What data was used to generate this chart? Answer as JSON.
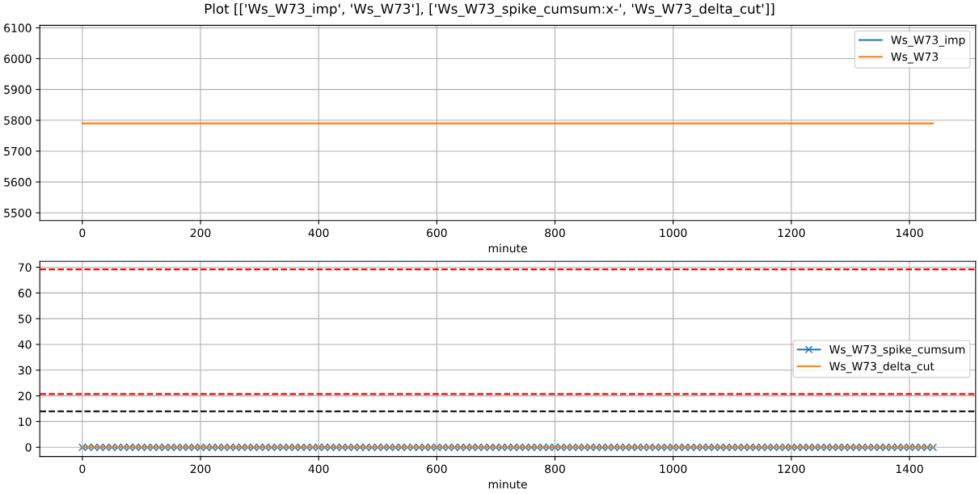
{
  "chart_data": [
    {
      "type": "line",
      "title": "Plot [['Ws_W73_imp', 'Ws_W73'], ['Ws_W73_spike_cumsum:x-', 'Ws_W73_delta_cut']]",
      "xlabel": "minute",
      "x": [
        0,
        1440
      ],
      "series": [
        {
          "name": "Ws_W73_imp",
          "color": "#1f77b4",
          "values": [
            null,
            null
          ]
        },
        {
          "name": "Ws_W73",
          "color": "#ff7f0e",
          "values": [
            5790,
            5790
          ]
        }
      ],
      "xlim": [
        -72,
        1512
      ],
      "xticks": [
        0,
        200,
        400,
        600,
        800,
        1000,
        1200,
        1400
      ],
      "ylim": [
        5475,
        6108
      ],
      "yticks": [
        5500,
        5600,
        5700,
        5800,
        5900,
        6000,
        6100
      ],
      "grid": true,
      "legend": "top right"
    },
    {
      "type": "line",
      "xlabel": "minute",
      "x": [
        0,
        10,
        20,
        30,
        40,
        50,
        60,
        70,
        80,
        90,
        100,
        110,
        120,
        130,
        140,
        150,
        160,
        170,
        180,
        190,
        200,
        210,
        220,
        230,
        240,
        250,
        260,
        270,
        280,
        290,
        300,
        310,
        320,
        330,
        340,
        350,
        360,
        370,
        380,
        390,
        400,
        410,
        420,
        430,
        440,
        450,
        460,
        470,
        480,
        490,
        500,
        510,
        520,
        530,
        540,
        550,
        560,
        570,
        580,
        590,
        600,
        610,
        620,
        630,
        640,
        650,
        660,
        670,
        680,
        690,
        700,
        710,
        720,
        730,
        740,
        750,
        760,
        770,
        780,
        790,
        800,
        810,
        820,
        830,
        840,
        850,
        860,
        870,
        880,
        890,
        900,
        910,
        920,
        930,
        940,
        950,
        960,
        970,
        980,
        990,
        1000,
        1010,
        1020,
        1030,
        1040,
        1050,
        1060,
        1070,
        1080,
        1090,
        1100,
        1110,
        1120,
        1130,
        1140,
        1150,
        1160,
        1170,
        1180,
        1190,
        1200,
        1210,
        1220,
        1230,
        1240,
        1250,
        1260,
        1270,
        1280,
        1290,
        1300,
        1310,
        1320,
        1330,
        1340,
        1350,
        1360,
        1370,
        1380,
        1390,
        1400,
        1410,
        1420,
        1430,
        1440
      ],
      "series": [
        {
          "name": "Ws_W73_spike_cumsum",
          "color": "#1f77b4",
          "marker": "cross",
          "values": [
            0,
            0,
            0,
            0,
            0,
            0,
            0,
            0,
            0,
            0,
            0,
            0,
            0,
            0,
            0,
            0,
            0,
            0,
            0,
            0,
            0,
            0,
            0,
            0,
            0,
            0,
            0,
            0,
            0,
            0,
            0,
            0,
            0,
            0,
            0,
            0,
            0,
            0,
            0,
            0,
            0,
            0,
            0,
            0,
            0,
            0,
            0,
            0,
            0,
            0,
            0,
            0,
            0,
            0,
            0,
            0,
            0,
            0,
            0,
            0,
            0,
            0,
            0,
            0,
            0,
            0,
            0,
            0,
            0,
            0,
            0,
            0,
            0,
            0,
            0,
            0,
            0,
            0,
            0,
            0,
            0,
            0,
            0,
            0,
            0,
            0,
            0,
            0,
            0,
            0,
            0,
            0,
            0,
            0,
            0,
            0,
            0,
            0,
            0,
            0,
            0,
            0,
            0,
            0,
            0,
            0,
            0,
            0,
            0,
            0,
            0,
            0,
            0,
            0,
            0,
            0,
            0,
            0,
            0,
            0,
            0,
            0,
            0,
            0,
            0,
            0,
            0,
            0,
            0,
            0,
            0,
            0,
            0,
            0,
            0,
            0,
            0,
            0,
            0,
            0,
            0,
            0,
            0,
            0,
            0
          ]
        },
        {
          "name": "Ws_W73_delta_cut",
          "color": "#ff7f0e",
          "x": [
            0,
            1440
          ],
          "values": [
            0,
            0
          ]
        }
      ],
      "ref_lines": [
        {
          "axis": "y",
          "value": 69.2,
          "color": "#ff0000",
          "line_style": "dashed"
        },
        {
          "axis": "y",
          "value": 20.7,
          "color": "#ff0000",
          "line_style": "dashed"
        },
        {
          "axis": "y",
          "value": 14,
          "color": "#000000",
          "line_style": "dashed"
        }
      ],
      "xlim": [
        -72,
        1512
      ],
      "xticks": [
        0,
        200,
        400,
        600,
        800,
        1000,
        1200,
        1400
      ],
      "ylim": [
        -3.6,
        72.3
      ],
      "yticks": [
        0,
        10,
        20,
        30,
        40,
        50,
        60,
        70
      ],
      "grid": true,
      "legend": "right"
    }
  ]
}
